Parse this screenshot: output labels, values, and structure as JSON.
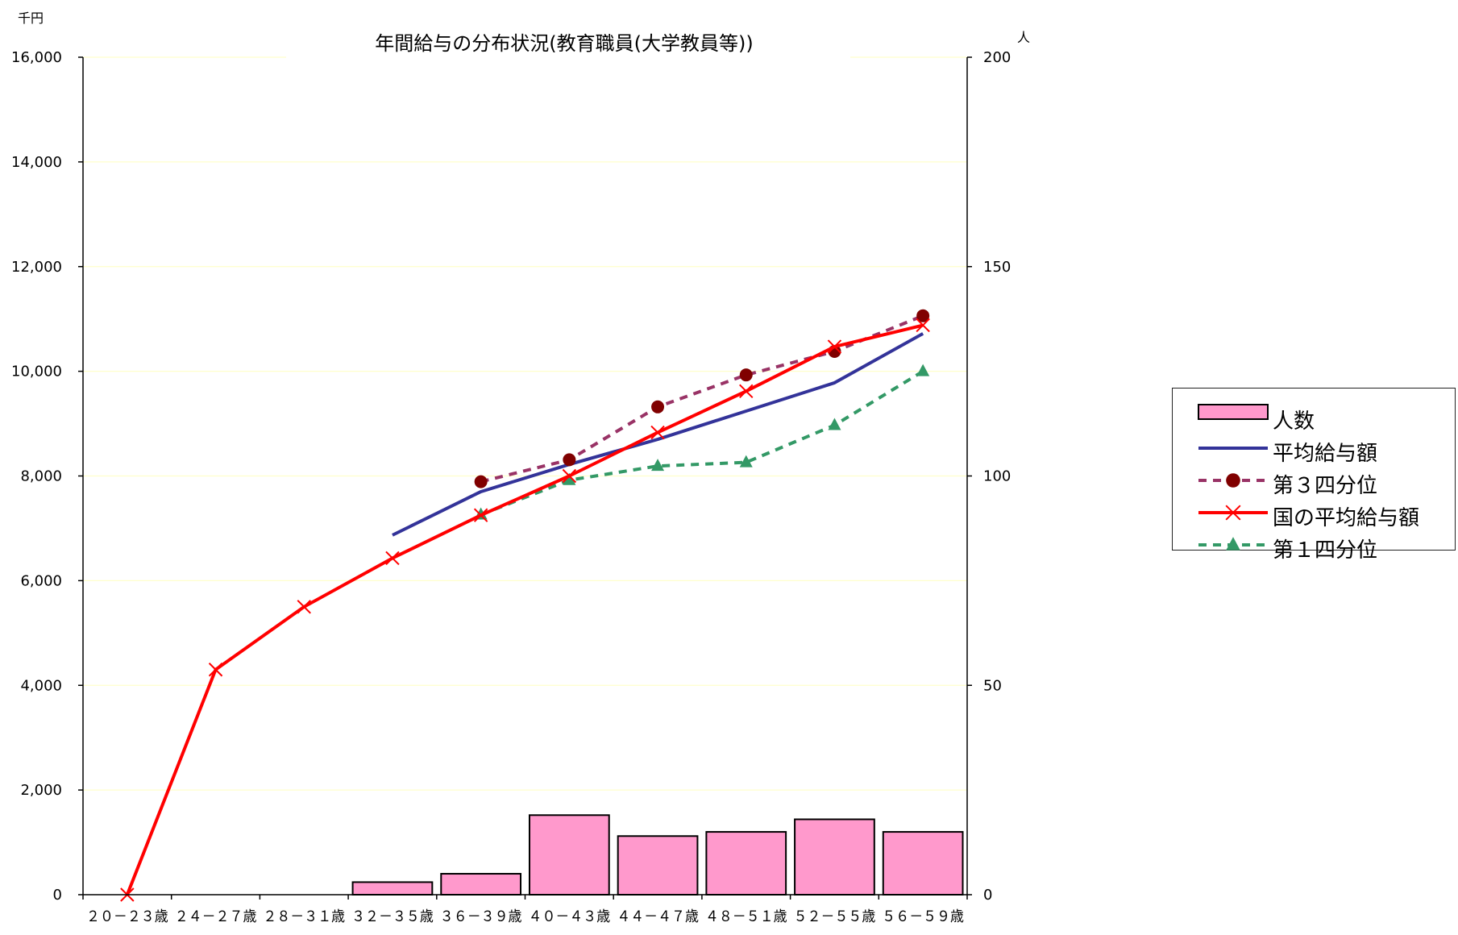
{
  "chart_data": {
    "type": "bar+line",
    "title": "年間給与の分布状況(教育職員(大学教員等))",
    "y_left_unit": "千円",
    "y_right_unit": "人",
    "y_left_lim": [
      0,
      16000
    ],
    "y_left_ticks": [
      "0",
      "2,000",
      "4,000",
      "6,000",
      "8,000",
      "10,000",
      "12,000",
      "14,000",
      "16,000"
    ],
    "y_right_lim": [
      0,
      200
    ],
    "y_right_ticks": [
      "0",
      "50",
      "100",
      "150",
      "200"
    ],
    "categories": [
      "２０－２３歳",
      "２４－２７歳",
      "２８－３１歳",
      "３２－３５歳",
      "３６－３９歳",
      "４０－４３歳",
      "４４－４７歳",
      "４８－５１歳",
      "５２－５５歳",
      "５６－５９歳"
    ],
    "legend_position": "right",
    "colors": {
      "bar_fill": "#ff99cc",
      "bar_stroke": "#000000",
      "avg": "#333399",
      "q3": "#993366",
      "q3_marker": "#800000",
      "national": "#ff0000",
      "q1": "#339966",
      "gridline": "#ffffcc"
    },
    "series": [
      {
        "name": "人数",
        "kind": "bar",
        "axis": "right",
        "values": [
          0,
          0,
          0,
          3,
          5,
          19,
          14,
          15,
          18,
          15
        ]
      },
      {
        "name": "平均給与額",
        "kind": "line",
        "axis": "left",
        "style": "solid",
        "marker": "none",
        "values": [
          null,
          null,
          null,
          6870,
          7700,
          8220,
          8700,
          9240,
          9780,
          10720
        ]
      },
      {
        "name": "第３四分位",
        "kind": "line",
        "axis": "left",
        "style": "dashed",
        "marker": "circle",
        "values": [
          null,
          null,
          null,
          null,
          7890,
          8310,
          9320,
          9930,
          10380,
          11060
        ]
      },
      {
        "name": "国の平均給与額",
        "kind": "line",
        "axis": "left",
        "style": "solid",
        "marker": "x",
        "values": [
          0,
          4300,
          5500,
          6430,
          7250,
          8000,
          8830,
          9620,
          10470,
          10880
        ]
      },
      {
        "name": "第１四分位",
        "kind": "line",
        "axis": "left",
        "style": "dashed",
        "marker": "triangle",
        "values": [
          null,
          null,
          null,
          null,
          7260,
          7920,
          8190,
          8260,
          8970,
          10000
        ]
      }
    ]
  }
}
